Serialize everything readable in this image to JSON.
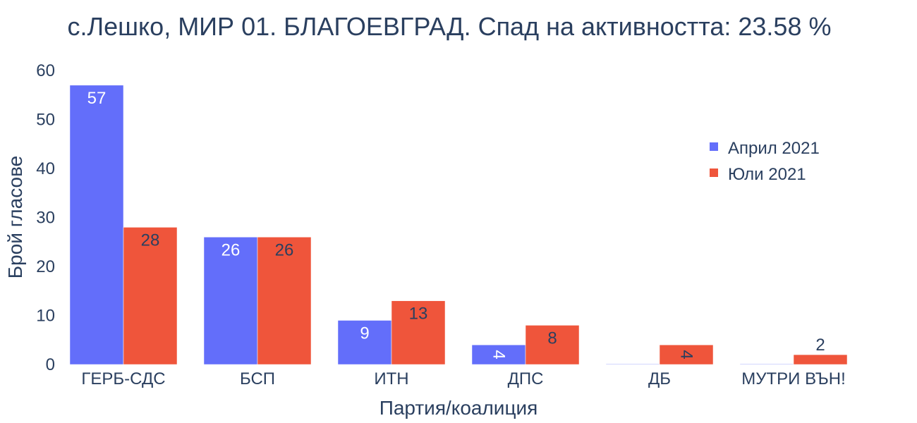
{
  "chart_data": {
    "type": "bar",
    "title": "с.Лешко, МИР 01. БЛАГОЕВГРАД. Спад на активността: 23.58 %",
    "xlabel": "Партия/коалиция",
    "ylabel": "Брой гласове",
    "categories": [
      "ГЕРБ-СДС",
      "БСП",
      "ИТН",
      "ДПС",
      "ДБ",
      "МУТРИ ВЪН!"
    ],
    "series": [
      {
        "name": "Април 2021",
        "color": "#636efa",
        "values": [
          57,
          26,
          9,
          4,
          0,
          0
        ]
      },
      {
        "name": "Юли 2021",
        "color": "#ef553b",
        "values": [
          28,
          26,
          13,
          8,
          4,
          2
        ]
      }
    ],
    "ylim": [
      0,
      60
    ],
    "yticks": [
      0,
      10,
      20,
      30,
      40,
      50,
      60
    ],
    "grid": false,
    "legend_position": "right"
  }
}
